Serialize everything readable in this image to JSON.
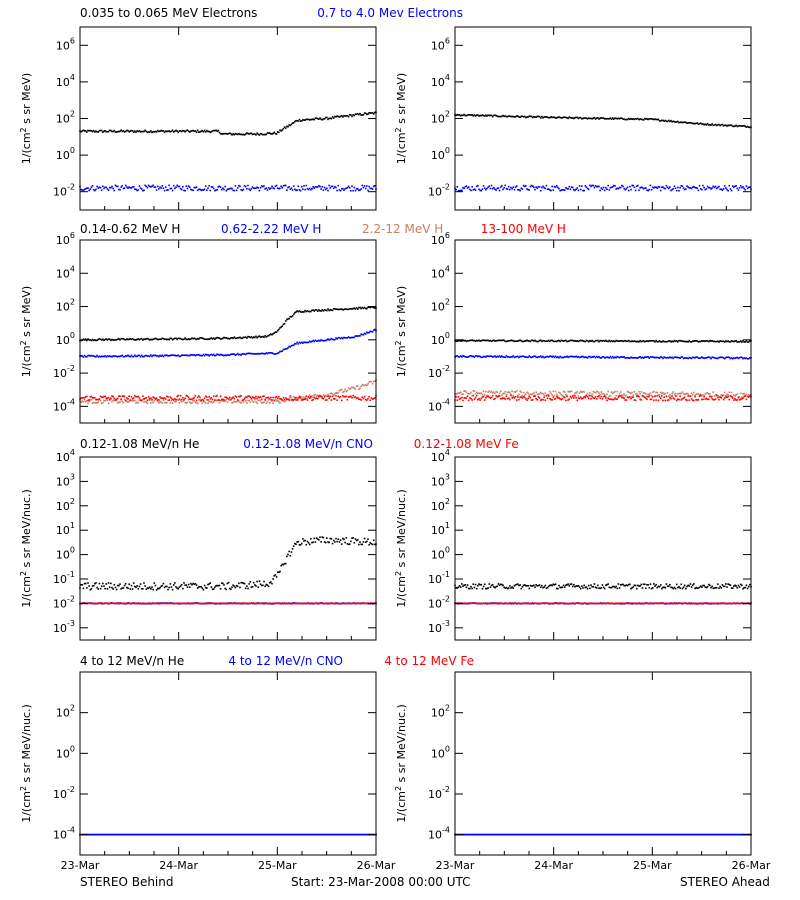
{
  "footer": {
    "left": "STEREO Behind",
    "center": "Start: 23-Mar-2008 00:00 UTC",
    "right": "STEREO Ahead"
  },
  "colors": {
    "black": "#000000",
    "blue": "#0000ff",
    "tan": "#c87f64",
    "red": "#ff0000"
  },
  "chart_data": [
    {
      "type": "scatter",
      "y_scale": "log",
      "ylim_exp": [
        -3,
        7
      ],
      "yticks_exp": [
        -2,
        0,
        2,
        4,
        6
      ],
      "ylabel_main": "1/(cm",
      "ylabel_sup": "2",
      "ylabel_rest": " s sr MeV)",
      "x_ticks": [
        "23-Mar",
        "24-Mar",
        "25-Mar",
        "26-Mar"
      ],
      "xlim_days": [
        0,
        3
      ],
      "legend": [
        {
          "text": "0.035 to 0.065 MeV Electrons",
          "color": "#000000"
        },
        {
          "text": "0.7 to 4.0 Mev Electrons",
          "color": "#0000ff"
        }
      ],
      "behind": [
        {
          "name": "0.035 to 0.065 MeV Electrons",
          "color": "#000000",
          "x": [
            0,
            0.5,
            1.0,
            1.4,
            1.45,
            1.8,
            2.0,
            2.05,
            2.15,
            2.2,
            2.5,
            2.8,
            3.0
          ],
          "log_y": [
            1.3,
            1.3,
            1.3,
            1.3,
            1.15,
            1.15,
            1.2,
            1.4,
            1.7,
            1.9,
            2.0,
            2.2,
            2.3
          ],
          "noise": 0.06
        },
        {
          "name": "0.7 to 4.0 Mev Electrons",
          "color": "#0000ff",
          "x": [
            0,
            3
          ],
          "log_y": [
            -1.8,
            -1.8
          ],
          "noise": 0.15
        }
      ],
      "ahead": [
        {
          "name": "0.035 to 0.065 MeV Electrons",
          "color": "#000000",
          "x": [
            0,
            1.0,
            2.0,
            2.5,
            3.0
          ],
          "log_y": [
            2.2,
            2.05,
            1.95,
            1.7,
            1.55
          ],
          "noise": 0.04
        },
        {
          "name": "0.7 to 4.0 Mev Electrons",
          "color": "#0000ff",
          "x": [
            0,
            3
          ],
          "log_y": [
            -1.8,
            -1.8
          ],
          "noise": 0.15
        }
      ]
    },
    {
      "type": "scatter",
      "y_scale": "log",
      "ylim_exp": [
        -5,
        6
      ],
      "yticks_exp": [
        -4,
        -2,
        0,
        2,
        4,
        6
      ],
      "ylabel_main": "1/(cm",
      "ylabel_sup": "2",
      "ylabel_rest": " s sr MeV)",
      "x_ticks": [
        "23-Mar",
        "24-Mar",
        "25-Mar",
        "26-Mar"
      ],
      "xlim_days": [
        0,
        3
      ],
      "legend": [
        {
          "text": "0.14-0.62 MeV H",
          "color": "#000000"
        },
        {
          "text": "0.62-2.22 MeV H",
          "color": "#0000ff"
        },
        {
          "text": "2.2-12 MeV H",
          "color": "#c87f64"
        },
        {
          "text": "13-100 MeV H",
          "color": "#ff0000"
        }
      ],
      "behind": [
        {
          "name": "0.14-0.62 MeV H",
          "color": "#000000",
          "x": [
            0,
            1.0,
            1.5,
            1.9,
            2.0,
            2.1,
            2.2,
            2.5,
            3.0
          ],
          "log_y": [
            0.0,
            0.05,
            0.1,
            0.2,
            0.5,
            1.2,
            1.7,
            1.8,
            1.95
          ],
          "noise": 0.05
        },
        {
          "name": "0.62-2.22 MeV H",
          "color": "#0000ff",
          "x": [
            0,
            1.0,
            1.5,
            2.0,
            2.2,
            2.5,
            2.8,
            3.0
          ],
          "log_y": [
            -1.0,
            -0.95,
            -0.9,
            -0.8,
            -0.2,
            0.0,
            0.2,
            0.6
          ],
          "noise": 0.05
        },
        {
          "name": "2.2-12 MeV H",
          "color": "#c87f64",
          "x": [
            0,
            2.0,
            2.2,
            2.5,
            2.8,
            3.0
          ],
          "log_y": [
            -3.7,
            -3.7,
            -3.5,
            -3.3,
            -2.9,
            -2.5
          ],
          "noise": 0.12
        },
        {
          "name": "13-100 MeV H",
          "color": "#ff0000",
          "x": [
            0,
            3
          ],
          "log_y": [
            -3.5,
            -3.5
          ],
          "noise": 0.15
        }
      ],
      "ahead": [
        {
          "name": "0.14-0.62 MeV H",
          "color": "#000000",
          "x": [
            0,
            3
          ],
          "log_y": [
            -0.05,
            -0.1
          ],
          "noise": 0.04
        },
        {
          "name": "0.62-2.22 MeV H",
          "color": "#0000ff",
          "x": [
            0,
            3
          ],
          "log_y": [
            -1.0,
            -1.1
          ],
          "noise": 0.05
        },
        {
          "name": "2.2-12 MeV H",
          "color": "#c87f64",
          "x": [
            0,
            3
          ],
          "log_y": [
            -3.2,
            -3.3
          ],
          "noise": 0.15
        },
        {
          "name": "13-100 MeV H",
          "color": "#ff0000",
          "x": [
            0,
            3
          ],
          "log_y": [
            -3.5,
            -3.5
          ],
          "noise": 0.15
        }
      ]
    },
    {
      "type": "scatter",
      "y_scale": "log",
      "ylim_exp": [
        -3.5,
        4
      ],
      "yticks_exp": [
        -3,
        -2,
        -1,
        0,
        1,
        2,
        3,
        4
      ],
      "ylabel_main": "1/(cm",
      "ylabel_sup": "2",
      "ylabel_rest": " s sr MeV/nuc.)",
      "x_ticks": [
        "23-Mar",
        "24-Mar",
        "25-Mar",
        "26-Mar"
      ],
      "xlim_days": [
        0,
        3
      ],
      "legend": [
        {
          "text": "0.12-1.08 MeV/n He",
          "color": "#000000"
        },
        {
          "text": "0.12-1.08 MeV/n CNO",
          "color": "#0000ff"
        },
        {
          "text": "0.12-1.08 MeV Fe",
          "color": "#ff0000"
        }
      ],
      "behind": [
        {
          "name": "0.12-1.08 MeV/n He",
          "color": "#000000",
          "x": [
            0,
            1.5,
            1.9,
            2.0,
            2.1,
            2.2,
            2.5,
            3.0
          ],
          "log_y": [
            -1.3,
            -1.3,
            -1.2,
            -0.9,
            -0.1,
            0.5,
            0.6,
            0.5
          ],
          "noise": 0.15
        },
        {
          "name": "0.12-1.08 MeV/n CNO",
          "color": "#0000ff",
          "x": [
            0,
            3
          ],
          "log_y": [
            -2.0,
            -2.0
          ],
          "noise": 0.02
        },
        {
          "name": "0.12-1.08 MeV Fe",
          "color": "#ff0000",
          "x": [
            0,
            3
          ],
          "log_y": [
            -2.0,
            -2.0
          ],
          "noise": 0.01
        }
      ],
      "ahead": [
        {
          "name": "0.12-1.08 MeV/n He",
          "color": "#000000",
          "x": [
            0,
            3
          ],
          "log_y": [
            -1.3,
            -1.3
          ],
          "noise": 0.1
        },
        {
          "name": "0.12-1.08 MeV/n CNO",
          "color": "#0000ff",
          "x": [
            0,
            3
          ],
          "log_y": [
            -2.0,
            -2.0
          ],
          "noise": 0.02
        },
        {
          "name": "0.12-1.08 MeV Fe",
          "color": "#ff0000",
          "x": [
            0,
            3
          ],
          "log_y": [
            -2.0,
            -2.0
          ],
          "noise": 0.01
        }
      ]
    },
    {
      "type": "scatter",
      "y_scale": "log",
      "ylim_exp": [
        -5,
        4
      ],
      "yticks_exp": [
        -4,
        -2,
        0,
        2
      ],
      "ylabel_main": "1/(cm",
      "ylabel_sup": "2",
      "ylabel_rest": " s sr MeV/nuc.)",
      "x_ticks": [
        "23-Mar",
        "24-Mar",
        "25-Mar",
        "26-Mar"
      ],
      "xlim_days": [
        0,
        3
      ],
      "legend": [
        {
          "text": "4 to 12 MeV/n He",
          "color": "#000000"
        },
        {
          "text": "4 to 12 MeV/n CNO",
          "color": "#0000ff"
        },
        {
          "text": "4 to 12 MeV Fe",
          "color": "#ff0000"
        }
      ],
      "behind": [
        {
          "name": "4 to 12 MeV/n He",
          "color": "#000000",
          "x": [
            0,
            3
          ],
          "log_y": [
            -4.0,
            -4.0
          ],
          "noise": 0.0
        },
        {
          "name": "4 to 12 MeV/n CNO",
          "color": "#0000ff",
          "x": [
            0,
            3
          ],
          "log_y": [
            -4.0,
            -4.0
          ],
          "noise": 0.0
        }
      ],
      "ahead": [
        {
          "name": "4 to 12 MeV/n He",
          "color": "#000000",
          "x": [
            0,
            3
          ],
          "log_y": [
            -4.0,
            -4.0
          ],
          "noise": 0.0
        },
        {
          "name": "4 to 12 MeV/n CNO",
          "color": "#0000ff",
          "x": [
            0,
            3
          ],
          "log_y": [
            -4.0,
            -4.0
          ],
          "noise": 0.0
        }
      ]
    }
  ]
}
